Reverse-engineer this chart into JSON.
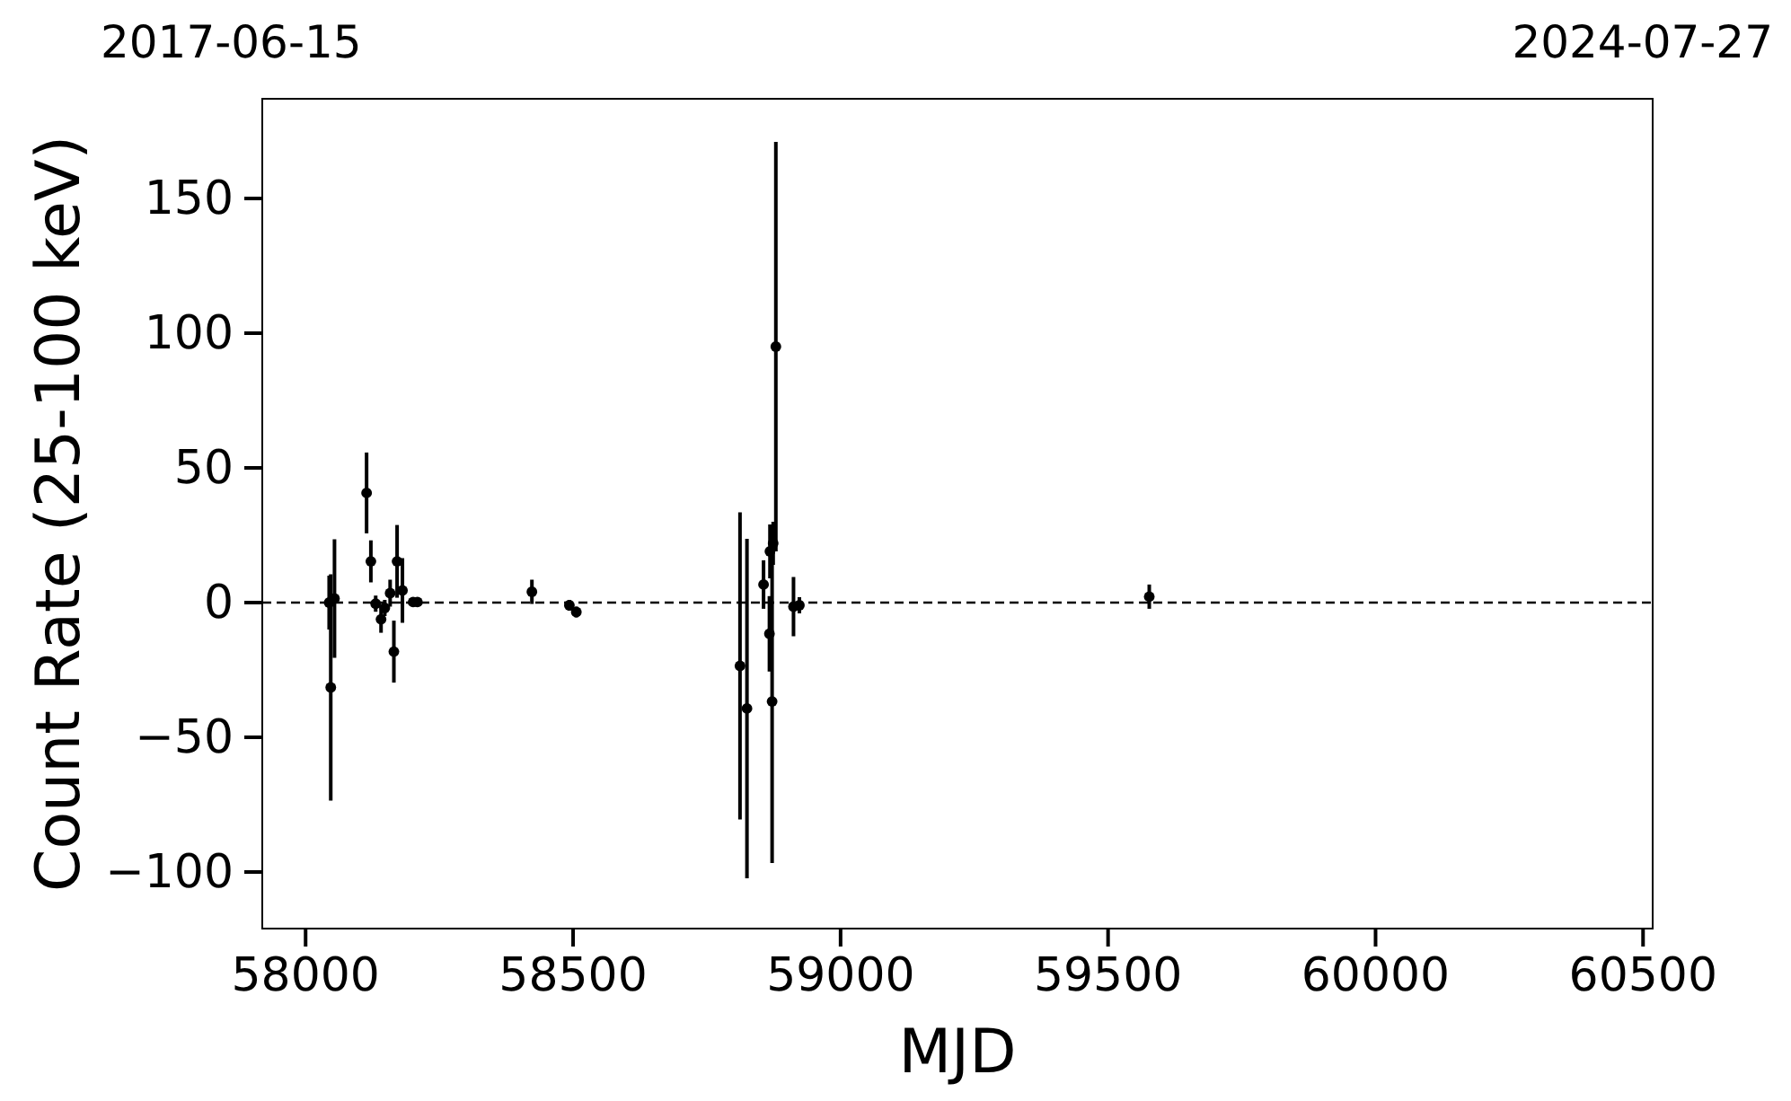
{
  "chart_data": {
    "type": "scatter",
    "xlabel": "MJD",
    "ylabel": "Count Rate (25-100 keV)",
    "x": [
      58044,
      58054,
      58047,
      58114,
      58122,
      58131,
      58141,
      58148,
      58158,
      58165,
      58171,
      58181,
      58201,
      58209,
      58423,
      58493,
      58506,
      58812,
      58825,
      58856,
      58867,
      58868,
      58872,
      58874,
      58879,
      58912,
      58923,
      59577
    ],
    "series": [
      {
        "color": "#000000",
        "values": [
          0,
          1.5,
          -31.5,
          40.7,
          15.3,
          -0.4,
          -6.2,
          -2,
          3.5,
          -18.2,
          15.3,
          4.5,
          0.2,
          0.2,
          4,
          -1,
          -3.5,
          -23.5,
          -39.3,
          6.7,
          -11.6,
          19,
          -36.7,
          22,
          95,
          -1.5,
          -1,
          2.2
        ],
        "errors": [
          10,
          22,
          42,
          15,
          7.8,
          3,
          5,
          3,
          5,
          11.5,
          13.5,
          12,
          1,
          1,
          4.5,
          2,
          2,
          57,
          63,
          9,
          14,
          10,
          60,
          8,
          76,
          11,
          3,
          4.5
        ]
      }
    ],
    "xlim": [
      57919,
      60518
    ],
    "xticks": [
      58000,
      58500,
      59000,
      59500,
      60000,
      60500
    ],
    "annotations": [
      "2017-06-15",
      "2024-07-27"
    ],
    "ylim": [
      -121,
      187
    ],
    "yticks": [
      {
        "value": -100,
        "label": "−100"
      },
      {
        "value": -50,
        "label": "−50"
      },
      0,
      50,
      100,
      150
    ],
    "ref_lines": [
      {
        "axis": "y",
        "value": 0,
        "color": "#000000",
        "line_style": "dashed"
      }
    ],
    "marker": "circle",
    "grid": false
  }
}
